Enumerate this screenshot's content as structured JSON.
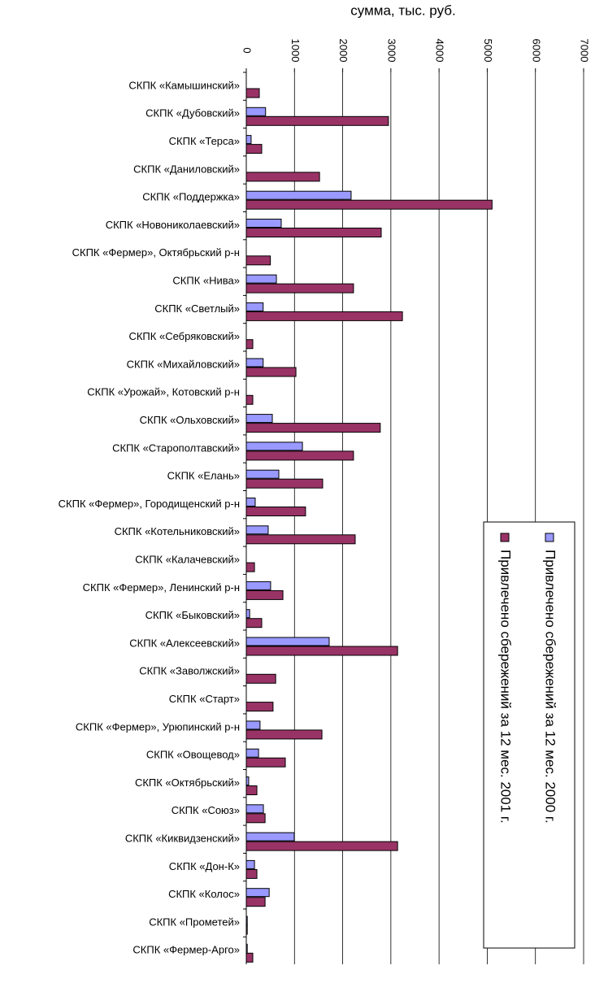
{
  "chart_data": {
    "type": "bar",
    "orientation": "horizontal",
    "title": "сумма, тыс. руб.",
    "categories": [
      "СКПК «Камышинский»",
      "СКПК «Дубовский»",
      "СКПК «Терса»",
      "СКПК «Даниловский»",
      "СКПК «Поддержка»",
      "СКПК «Новониколаевский»",
      "СКПК «Фермер», Октябрьский р-н",
      "СКПК «Нива»",
      "СКПК «Светлый»",
      "СКПК «Себряковский»",
      "СКПК «Михайловский»",
      "СКПК «Урожай», Котовский р-н",
      "СКПК «Ольховский»",
      "СКПК «Старополтавский»",
      "СКПК «Елань»",
      "СКПК «Фермер», Городищенский р-н",
      "СКПК «Котельниковский»",
      "СКПК «Калачевский»",
      "СКПК «Фермер», Ленинский р-н",
      "СКПК «Быковский»",
      "СКПК «Алексеевский»",
      "СКПК «Заволжский»",
      "СКПК «Старт»",
      "СКПК «Фермер», Урюпинский р-н",
      "СКПК «Овощевод»",
      "СКПК «Октябрьский»",
      "СКПК «Союз»",
      "СКПК «Киквидзенский»",
      "СКПК «Дон-К»",
      "СКПК «Колос»",
      "СКПК «Прометей»",
      "СКПК «Фермер-Арго»"
    ],
    "series": [
      {
        "name": "Привлечено сбережений за 12 мес. 2000 г.",
        "color": "#9999ff",
        "values": [
          null,
          400,
          100,
          null,
          2175,
          725,
          null,
          625,
          350,
          null,
          350,
          null,
          540,
          1165,
          675,
          185,
          455,
          null,
          505,
          70,
          1720,
          null,
          null,
          285,
          255,
          50,
          355,
          995,
          170,
          475,
          20,
          20
        ]
      },
      {
        "name": "Привлечено сбережений за 12 мес. 2001 г.",
        "color": "#993366",
        "values": [
          270,
          2950,
          320,
          1520,
          5100,
          2800,
          500,
          2225,
          3240,
          135,
          1030,
          135,
          2780,
          2225,
          1585,
          1230,
          2260,
          170,
          760,
          320,
          3140,
          610,
          555,
          1570,
          810,
          220,
          390,
          3140,
          220,
          390,
          20,
          135
        ]
      }
    ],
    "xlim": [
      0,
      7000
    ],
    "xticks": [
      0,
      1000,
      2000,
      3000,
      4000,
      5000,
      6000,
      7000
    ],
    "grid": true
  }
}
